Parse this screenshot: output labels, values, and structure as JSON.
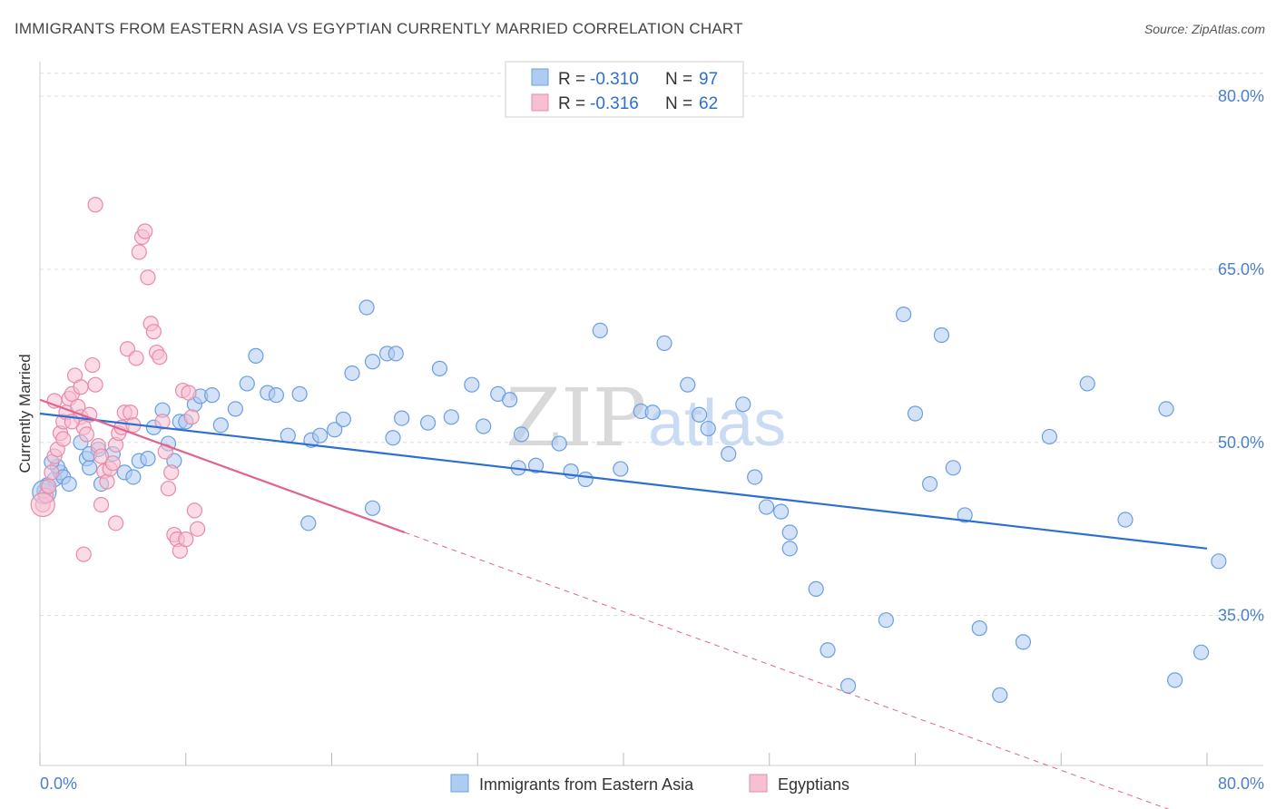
{
  "header": {
    "title": "IMMIGRANTS FROM EASTERN ASIA VS EGYPTIAN CURRENTLY MARRIED CORRELATION CHART",
    "source": "Source: ZipAtlas.com"
  },
  "watermark": {
    "part1": "ZIP",
    "part2": "atlas"
  },
  "legend_top": {
    "rows": [
      {
        "r_label": "R = ",
        "r_value": "-0.310",
        "n_label": "N = ",
        "n_value": "97"
      },
      {
        "r_label": "R = ",
        "r_value": "-0.316",
        "n_label": "N = ",
        "n_value": "62"
      }
    ]
  },
  "colors": {
    "blue_fill": "#aecbf0",
    "blue_stroke": "#6a9fe0",
    "blue_line": "#2d6fd0",
    "pink_fill": "#f7c0d1",
    "pink_stroke": "#e98aa8",
    "pink_line": "#e0648f",
    "axis_text": "#4a7fd0",
    "grid": "#dddddd"
  },
  "chart_data": {
    "type": "scatter",
    "title": "IMMIGRANTS FROM EASTERN ASIA VS EGYPTIAN CURRENTLY MARRIED CORRELATION CHART",
    "xlabel": "",
    "ylabel": "Currently Married",
    "xlim": [
      0,
      80
    ],
    "ylim": [
      22,
      83
    ],
    "x_tick_labels": [
      "0.0%",
      "80.0%"
    ],
    "y_ticks": [
      35,
      50,
      65,
      80
    ],
    "y_tick_labels": [
      "35.0%",
      "50.0%",
      "65.0%",
      "80.0%"
    ],
    "grid": true,
    "legend_placement": "bottom-center",
    "series": [
      {
        "name": "Immigrants from Eastern Asia",
        "r": -0.31,
        "n": 97,
        "trend": {
          "x": [
            0,
            80
          ],
          "y": [
            52.5,
            40.8
          ]
        },
        "points": [
          [
            0.3,
            45.8
          ],
          [
            0.5,
            46.3
          ],
          [
            1.0,
            46.8
          ],
          [
            1.4,
            47.4
          ],
          [
            1.2,
            47.9
          ],
          [
            0.8,
            48.3
          ],
          [
            1.6,
            47.0
          ],
          [
            2.0,
            46.4
          ],
          [
            2.8,
            50.0
          ],
          [
            3.2,
            48.6
          ],
          [
            3.4,
            47.8
          ],
          [
            4.0,
            49.4
          ],
          [
            4.2,
            46.4
          ],
          [
            3.4,
            49.0
          ],
          [
            5.0,
            49.0
          ],
          [
            5.8,
            47.4
          ],
          [
            6.4,
            47.0
          ],
          [
            6.8,
            48.4
          ],
          [
            7.4,
            48.6
          ],
          [
            7.8,
            51.3
          ],
          [
            8.4,
            52.8
          ],
          [
            8.8,
            49.9
          ],
          [
            9.2,
            48.4
          ],
          [
            9.6,
            51.8
          ],
          [
            10.0,
            51.8
          ],
          [
            10.6,
            53.3
          ],
          [
            11.0,
            54.0
          ],
          [
            11.8,
            54.1
          ],
          [
            12.4,
            51.5
          ],
          [
            13.4,
            52.9
          ],
          [
            14.2,
            55.1
          ],
          [
            14.8,
            57.5
          ],
          [
            15.6,
            54.3
          ],
          [
            16.2,
            54.1
          ],
          [
            17.0,
            50.6
          ],
          [
            17.8,
            54.2
          ],
          [
            18.6,
            50.2
          ],
          [
            19.2,
            50.6
          ],
          [
            20.2,
            51.1
          ],
          [
            20.8,
            52.0
          ],
          [
            21.4,
            56.0
          ],
          [
            22.4,
            61.7
          ],
          [
            22.8,
            57.0
          ],
          [
            23.8,
            57.7
          ],
          [
            24.4,
            57.7
          ],
          [
            24.2,
            50.4
          ],
          [
            24.8,
            52.1
          ],
          [
            26.6,
            51.7
          ],
          [
            27.4,
            56.4
          ],
          [
            28.2,
            52.2
          ],
          [
            29.6,
            55.0
          ],
          [
            30.4,
            51.4
          ],
          [
            31.4,
            54.2
          ],
          [
            32.2,
            53.7
          ],
          [
            33.0,
            50.7
          ],
          [
            32.8,
            47.8
          ],
          [
            34.0,
            48.0
          ],
          [
            35.6,
            49.9
          ],
          [
            36.4,
            47.5
          ],
          [
            37.4,
            46.8
          ],
          [
            38.4,
            59.7
          ],
          [
            39.8,
            47.7
          ],
          [
            41.2,
            52.7
          ],
          [
            42.0,
            52.6
          ],
          [
            42.8,
            58.6
          ],
          [
            44.4,
            55.0
          ],
          [
            45.2,
            52.4
          ],
          [
            45.8,
            51.2
          ],
          [
            47.2,
            49.0
          ],
          [
            48.2,
            53.3
          ],
          [
            49.0,
            47.0
          ],
          [
            49.8,
            44.4
          ],
          [
            50.8,
            44.0
          ],
          [
            51.4,
            42.2
          ],
          [
            51.4,
            40.8
          ],
          [
            53.2,
            37.3
          ],
          [
            54.0,
            32.0
          ],
          [
            55.4,
            28.9
          ],
          [
            58.0,
            34.6
          ],
          [
            59.2,
            61.1
          ],
          [
            60.0,
            52.5
          ],
          [
            61.0,
            46.4
          ],
          [
            61.8,
            59.3
          ],
          [
            62.6,
            47.8
          ],
          [
            63.4,
            43.7
          ],
          [
            64.4,
            33.9
          ],
          [
            65.8,
            28.1
          ],
          [
            67.4,
            32.7
          ],
          [
            69.2,
            50.5
          ],
          [
            71.8,
            55.1
          ],
          [
            74.4,
            43.3
          ],
          [
            77.2,
            52.9
          ],
          [
            77.8,
            29.4
          ],
          [
            79.6,
            31.8
          ],
          [
            80.8,
            39.7
          ],
          [
            18.4,
            43.0
          ],
          [
            22.8,
            44.3
          ]
        ]
      },
      {
        "name": "Egyptians",
        "r": -0.316,
        "n": 62,
        "trend": {
          "x": [
            0,
            25
          ],
          "y": [
            53.7,
            42.2
          ],
          "dashed_to": {
            "x": [
              25,
              80
            ],
            "y": [
              42.2,
              17.0
            ]
          }
        },
        "points": [
          [
            0.2,
            44.6
          ],
          [
            0.4,
            45.4
          ],
          [
            0.6,
            46.2
          ],
          [
            0.8,
            47.4
          ],
          [
            1.0,
            48.8
          ],
          [
            1.2,
            49.4
          ],
          [
            1.4,
            50.8
          ],
          [
            1.6,
            51.8
          ],
          [
            1.8,
            52.6
          ],
          [
            2.0,
            53.8
          ],
          [
            2.2,
            54.2
          ],
          [
            2.4,
            55.8
          ],
          [
            2.6,
            53.1
          ],
          [
            2.8,
            52.2
          ],
          [
            3.0,
            51.3
          ],
          [
            3.2,
            50.7
          ],
          [
            3.4,
            52.4
          ],
          [
            3.6,
            56.7
          ],
          [
            3.8,
            55.0
          ],
          [
            4.0,
            49.7
          ],
          [
            4.2,
            48.8
          ],
          [
            4.4,
            47.5
          ],
          [
            4.6,
            46.6
          ],
          [
            4.8,
            47.7
          ],
          [
            5.0,
            48.2
          ],
          [
            5.2,
            49.8
          ],
          [
            5.4,
            50.8
          ],
          [
            5.6,
            51.3
          ],
          [
            5.8,
            52.6
          ],
          [
            6.0,
            58.1
          ],
          [
            6.2,
            52.6
          ],
          [
            6.4,
            51.5
          ],
          [
            6.6,
            57.3
          ],
          [
            6.8,
            66.5
          ],
          [
            7.0,
            67.8
          ],
          [
            7.2,
            68.3
          ],
          [
            7.4,
            64.3
          ],
          [
            7.6,
            60.3
          ],
          [
            7.8,
            59.6
          ],
          [
            8.0,
            57.8
          ],
          [
            8.2,
            57.4
          ],
          [
            8.4,
            51.8
          ],
          [
            8.6,
            49.2
          ],
          [
            8.8,
            46.0
          ],
          [
            9.0,
            47.4
          ],
          [
            9.2,
            42.0
          ],
          [
            9.4,
            41.6
          ],
          [
            9.6,
            40.6
          ],
          [
            9.8,
            54.5
          ],
          [
            10.0,
            41.6
          ],
          [
            10.2,
            54.3
          ],
          [
            10.4,
            52.2
          ],
          [
            10.6,
            44.1
          ],
          [
            10.8,
            42.5
          ],
          [
            3.8,
            70.6
          ],
          [
            1.0,
            53.6
          ],
          [
            2.2,
            51.8
          ],
          [
            1.6,
            50.3
          ],
          [
            2.8,
            54.8
          ],
          [
            4.2,
            44.6
          ],
          [
            3.0,
            40.3
          ],
          [
            5.2,
            43.0
          ]
        ]
      }
    ]
  },
  "legend_bottom": {
    "items": [
      {
        "label": "Immigrants from Eastern Asia"
      },
      {
        "label": "Egyptians"
      }
    ]
  }
}
